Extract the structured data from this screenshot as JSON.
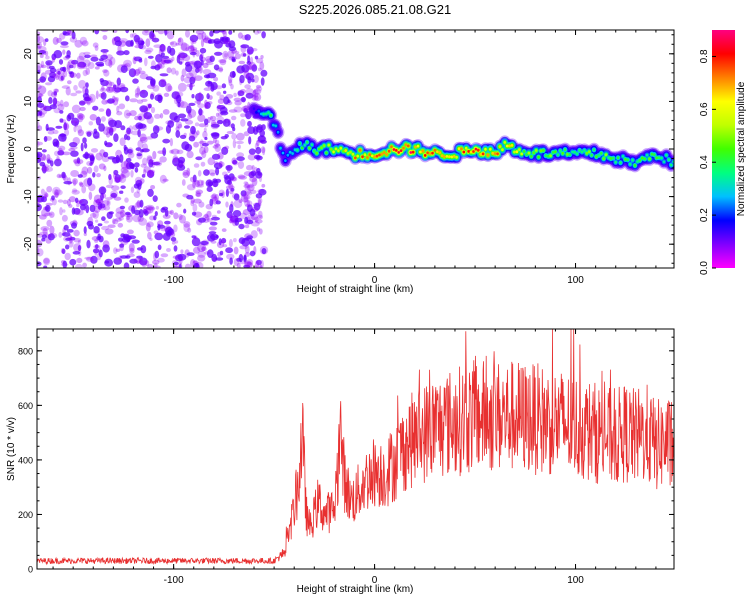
{
  "title": "S225.2026.085.21.08.G21",
  "chart_data": [
    {
      "type": "heatmap",
      "title": "",
      "xlabel": "Height of straight line (km)",
      "ylabel": "Frequency (Hz)",
      "xlim": [
        -168,
        149
      ],
      "ylim": [
        -25,
        25
      ],
      "xticks": [
        -100,
        0,
        100
      ],
      "yticks": [
        -20,
        -10,
        0,
        10,
        20
      ],
      "colorbar": {
        "label": "Normalized spectral amplitude",
        "range": [
          0.0,
          0.9
        ],
        "ticks": [
          0.0,
          0.2,
          0.4,
          0.6,
          0.8
        ],
        "colormap": [
          "#ff00ff",
          "#8000ff",
          "#0000ff",
          "#00c0ff",
          "#00ff80",
          "#40ff00",
          "#c0ff00",
          "#ffff00",
          "#ff8000",
          "#ff0000",
          "#ff0080"
        ]
      },
      "noise_region": {
        "x_range": [
          -168,
          -55
        ],
        "level": [
          0.02,
          0.15
        ]
      },
      "ridge": {
        "x": [
          -60,
          -56,
          -52,
          -50,
          -48,
          -46,
          -44,
          -42,
          -40,
          -35,
          -30,
          -25,
          -20,
          -10,
          0,
          10,
          20,
          30,
          40,
          50,
          60,
          65,
          70,
          80,
          90,
          100,
          110,
          120,
          130,
          140,
          149
        ],
        "y": [
          8,
          8,
          7,
          5,
          3,
          -1,
          -3,
          -1,
          0,
          1,
          0,
          0,
          0,
          -1,
          -1,
          0,
          0,
          -1,
          -1,
          0,
          -1,
          1,
          0,
          -1,
          -1,
          -1,
          -1,
          -2,
          -3,
          -1,
          -3
        ],
        "amplitude": [
          0.15,
          0.3,
          0.4,
          0.35,
          0.3,
          0.25,
          0.3,
          0.3,
          0.35,
          0.4,
          0.45,
          0.5,
          0.55,
          0.7,
          0.75,
          0.85,
          0.8,
          0.75,
          0.7,
          0.8,
          0.8,
          0.7,
          0.6,
          0.5,
          0.5,
          0.45,
          0.5,
          0.45,
          0.4,
          0.45,
          0.4
        ]
      }
    },
    {
      "type": "line",
      "title": "",
      "xlabel": "Height of straight line (km)",
      "ylabel": "SNR (10 * v/v)",
      "xlim": [
        -168,
        149
      ],
      "ylim": [
        0,
        880
      ],
      "xticks": [
        -100,
        0,
        100
      ],
      "yticks": [
        0,
        200,
        400,
        600,
        800
      ],
      "color": "#e83030",
      "series": [
        {
          "x": [
            -168,
            -150,
            -100,
            -60,
            -50,
            -45,
            -42,
            -38,
            -36,
            -35,
            -34,
            -32,
            -30,
            -28,
            -25,
            -20,
            -17,
            -15,
            -12,
            -10,
            -5,
            0,
            5,
            10,
            15,
            20,
            25,
            30,
            40,
            50,
            60,
            70,
            80,
            90,
            100,
            110,
            120,
            125,
            130,
            135,
            140,
            145,
            149
          ],
          "y": [
            30,
            30,
            30,
            30,
            30,
            60,
            150,
            300,
            500,
            350,
            200,
            150,
            200,
            250,
            200,
            220,
            500,
            330,
            250,
            260,
            320,
            360,
            350,
            390,
            450,
            480,
            500,
            520,
            540,
            560,
            560,
            560,
            550,
            540,
            520,
            500,
            480,
            500,
            480,
            500,
            450,
            470,
            430
          ]
        }
      ]
    }
  ]
}
